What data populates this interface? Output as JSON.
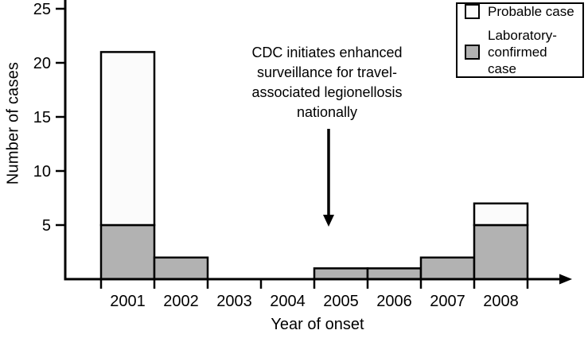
{
  "figure": {
    "background": "#ffffff",
    "axis_color": "#000000",
    "bar_outline": "#000000"
  },
  "chart_data": {
    "type": "bar",
    "stacked": true,
    "title": "",
    "xlabel": "Year of onset",
    "ylabel": "Number of cases",
    "categories": [
      "2001",
      "2002",
      "2003",
      "2004",
      "2005",
      "2006",
      "2007",
      "2008"
    ],
    "series": [
      {
        "name": "Probable case",
        "color": "#fbfbfb",
        "values": [
          16,
          0,
          0,
          0,
          0,
          0,
          0,
          2
        ]
      },
      {
        "name": "Laboratory-confirmed case",
        "color": "#b2b2b2",
        "values": [
          5,
          2,
          0,
          0,
          1,
          1,
          2,
          5
        ]
      }
    ],
    "ylim": [
      0,
      26
    ],
    "yticks": [
      5,
      10,
      15,
      20,
      25
    ],
    "grid": false,
    "legend_position": "top-right",
    "x_axis_arrow": "right",
    "annotation": {
      "text": "CDC initiates enhanced\nsurveillance for travel-\nassociated legionellosis\nnationally",
      "arrow_direction": "down",
      "arrow_points_to": "x-axis region above the 2005 bar"
    }
  }
}
